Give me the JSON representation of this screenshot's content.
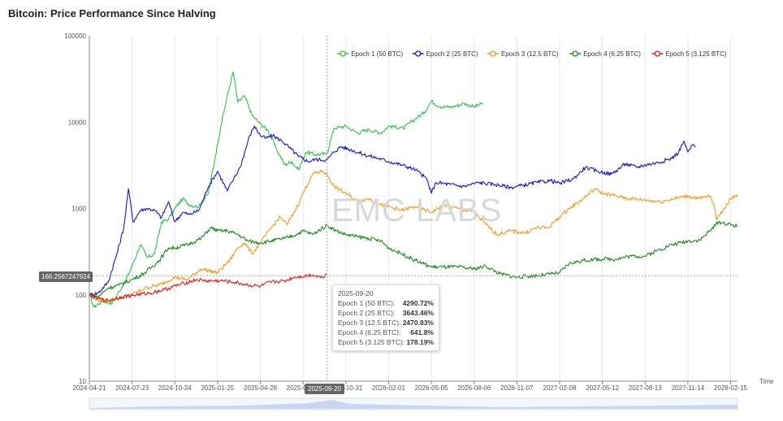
{
  "title": "Bitcoin: Price Performance Since Halving",
  "watermark": "EMC LABS",
  "chart_data": {
    "type": "line",
    "yscale": "log",
    "ylim": [
      10,
      100000
    ],
    "y_ticks": [
      "10",
      "100",
      "1000",
      "10000",
      "100000"
    ],
    "x_ticks": [
      "2024-04-21",
      "2024-07-23",
      "2024-10-24",
      "2025-01-25",
      "2025-04-28",
      "2025-07-30",
      "2025-10-31",
      "2026-02-01",
      "2026-05-05",
      "2026-08-06",
      "2026-11-07",
      "2027-02-08",
      "2027-05-12",
      "2027-08-13",
      "2027-11-14",
      "2028-02-15"
    ],
    "x_range": [
      "2024-04-21",
      "2028-03-01"
    ],
    "xlabel": "Time",
    "legend_position": "top-right",
    "grid": "vertical",
    "series": [
      {
        "name": "Epoch 1 (50 BTC)",
        "color": "#2ec24a",
        "points": [
          [
            "2024-04-21",
            100
          ],
          [
            "2024-05-01",
            72
          ],
          [
            "2024-05-20",
            85
          ],
          [
            "2024-06-10",
            80
          ],
          [
            "2024-06-25",
            110
          ],
          [
            "2024-07-10",
            150
          ],
          [
            "2024-07-25",
            230
          ],
          [
            "2024-08-10",
            380
          ],
          [
            "2024-08-25",
            270
          ],
          [
            "2024-09-10",
            300
          ],
          [
            "2024-09-25",
            700
          ],
          [
            "2024-10-10",
            750
          ],
          [
            "2024-10-24",
            1000
          ],
          [
            "2024-11-10",
            1300
          ],
          [
            "2024-11-25",
            1100
          ],
          [
            "2024-12-15",
            1050
          ],
          [
            "2025-01-05",
            1500
          ],
          [
            "2025-01-20",
            4000
          ],
          [
            "2025-02-01",
            9000
          ],
          [
            "2025-02-15",
            20000
          ],
          [
            "2025-02-28",
            38000
          ],
          [
            "2025-03-10",
            17000
          ],
          [
            "2025-03-25",
            20000
          ],
          [
            "2025-04-10",
            12000
          ],
          [
            "2025-04-28",
            9500
          ],
          [
            "2025-05-15",
            8000
          ],
          [
            "2025-06-01",
            5000
          ],
          [
            "2025-06-20",
            3200
          ],
          [
            "2025-07-05",
            3500
          ],
          [
            "2025-07-20",
            2800
          ],
          [
            "2025-08-05",
            4500
          ],
          [
            "2025-08-25",
            4200
          ],
          [
            "2025-09-20",
            4290
          ],
          [
            "2025-10-05",
            8500
          ],
          [
            "2025-10-31",
            9000
          ],
          [
            "2025-11-25",
            7500
          ],
          [
            "2025-12-20",
            8200
          ],
          [
            "2026-01-15",
            7500
          ],
          [
            "2026-02-01",
            9000
          ],
          [
            "2026-03-05",
            8500
          ],
          [
            "2026-04-01",
            11000
          ],
          [
            "2026-04-20",
            13000
          ],
          [
            "2026-05-05",
            17500
          ],
          [
            "2026-05-25",
            15000
          ],
          [
            "2026-06-20",
            15000
          ],
          [
            "2026-07-15",
            16500
          ],
          [
            "2026-08-06",
            15000
          ],
          [
            "2026-08-25",
            16500
          ]
        ]
      },
      {
        "name": "Epoch 2 (25 BTC)",
        "color": "#1616d4",
        "points": [
          [
            "2024-04-21",
            100
          ],
          [
            "2024-05-10",
            105
          ],
          [
            "2024-06-01",
            140
          ],
          [
            "2024-06-20",
            300
          ],
          [
            "2024-07-05",
            600
          ],
          [
            "2024-07-15",
            1700
          ],
          [
            "2024-07-25",
            700
          ],
          [
            "2024-08-10",
            950
          ],
          [
            "2024-08-25",
            1000
          ],
          [
            "2024-09-10",
            950
          ],
          [
            "2024-09-25",
            780
          ],
          [
            "2024-10-10",
            1200
          ],
          [
            "2024-10-24",
            700
          ],
          [
            "2024-11-10",
            900
          ],
          [
            "2024-11-25",
            850
          ],
          [
            "2024-12-15",
            950
          ],
          [
            "2025-01-05",
            1800
          ],
          [
            "2025-01-25",
            2700
          ],
          [
            "2025-02-15",
            1600
          ],
          [
            "2025-03-01",
            2200
          ],
          [
            "2025-03-15",
            3000
          ],
          [
            "2025-04-05",
            7000
          ],
          [
            "2025-04-15",
            9000
          ],
          [
            "2025-04-28",
            7000
          ],
          [
            "2025-05-10",
            6500
          ],
          [
            "2025-05-25",
            7000
          ],
          [
            "2025-06-15",
            6000
          ],
          [
            "2025-07-01",
            5000
          ],
          [
            "2025-07-20",
            4000
          ],
          [
            "2025-08-10",
            3500
          ],
          [
            "2025-08-25",
            3700
          ],
          [
            "2025-09-20",
            3643
          ],
          [
            "2025-10-05",
            4500
          ],
          [
            "2025-10-20",
            5200
          ],
          [
            "2025-11-10",
            4800
          ],
          [
            "2025-12-10",
            4200
          ],
          [
            "2026-01-10",
            3800
          ],
          [
            "2026-02-01",
            3500
          ],
          [
            "2026-03-01",
            3200
          ],
          [
            "2026-04-01",
            2800
          ],
          [
            "2026-04-25",
            2200
          ],
          [
            "2026-05-05",
            1500
          ],
          [
            "2026-05-15",
            2000
          ],
          [
            "2026-06-15",
            1900
          ],
          [
            "2026-07-15",
            1800
          ],
          [
            "2026-08-15",
            2000
          ],
          [
            "2026-09-20",
            1900
          ],
          [
            "2026-10-25",
            1750
          ],
          [
            "2026-11-20",
            1850
          ],
          [
            "2026-12-20",
            2000
          ],
          [
            "2027-01-20",
            2100
          ],
          [
            "2027-02-08",
            1950
          ],
          [
            "2027-03-10",
            2200
          ],
          [
            "2027-04-05",
            3000
          ],
          [
            "2027-05-01",
            2700
          ],
          [
            "2027-06-01",
            2500
          ],
          [
            "2027-07-01",
            3300
          ],
          [
            "2027-07-25",
            3000
          ],
          [
            "2027-08-13",
            3200
          ],
          [
            "2027-09-10",
            3400
          ],
          [
            "2027-10-10",
            3800
          ],
          [
            "2027-10-25",
            4500
          ],
          [
            "2027-11-05",
            6000
          ],
          [
            "2027-11-14",
            4500
          ],
          [
            "2027-11-25",
            5500
          ],
          [
            "2027-12-01",
            5200
          ]
        ]
      },
      {
        "name": "Epoch 3 (12.5 BTC)",
        "color": "#f29a1e",
        "points": [
          [
            "2024-04-21",
            100
          ],
          [
            "2024-05-15",
            85
          ],
          [
            "2024-06-15",
            90
          ],
          [
            "2024-07-23",
            100
          ],
          [
            "2024-08-20",
            120
          ],
          [
            "2024-09-20",
            130
          ],
          [
            "2024-10-24",
            160
          ],
          [
            "2024-11-20",
            150
          ],
          [
            "2024-12-20",
            200
          ],
          [
            "2025-01-25",
            180
          ],
          [
            "2025-02-20",
            250
          ],
          [
            "2025-03-10",
            350
          ],
          [
            "2025-03-25",
            400
          ],
          [
            "2025-04-10",
            300
          ],
          [
            "2025-04-28",
            400
          ],
          [
            "2025-05-20",
            580
          ],
          [
            "2025-06-10",
            800
          ],
          [
            "2025-06-25",
            650
          ],
          [
            "2025-07-15",
            1000
          ],
          [
            "2025-07-30",
            1500
          ],
          [
            "2025-08-20",
            2500
          ],
          [
            "2025-09-10",
            2700
          ],
          [
            "2025-09-20",
            2470
          ],
          [
            "2025-10-05",
            1800
          ],
          [
            "2025-10-31",
            1500
          ],
          [
            "2025-11-25",
            1200
          ],
          [
            "2025-12-20",
            1300
          ],
          [
            "2026-01-15",
            1100
          ],
          [
            "2026-02-01",
            1050
          ],
          [
            "2026-03-01",
            950
          ],
          [
            "2026-04-01",
            1050
          ],
          [
            "2026-05-05",
            900
          ],
          [
            "2026-06-01",
            1100
          ],
          [
            "2026-07-01",
            1000
          ],
          [
            "2026-08-06",
            900
          ],
          [
            "2026-09-01",
            650
          ],
          [
            "2026-09-25",
            500
          ],
          [
            "2026-10-25",
            550
          ],
          [
            "2026-11-25",
            520
          ],
          [
            "2026-12-20",
            600
          ],
          [
            "2027-01-15",
            600
          ],
          [
            "2027-02-08",
            800
          ],
          [
            "2027-03-01",
            1000
          ],
          [
            "2027-04-01",
            1300
          ],
          [
            "2027-04-25",
            1700
          ],
          [
            "2027-05-12",
            1500
          ],
          [
            "2027-06-10",
            1400
          ],
          [
            "2027-07-10",
            1300
          ],
          [
            "2027-08-13",
            1250
          ],
          [
            "2027-09-15",
            1200
          ],
          [
            "2027-10-15",
            1300
          ],
          [
            "2027-11-14",
            1400
          ],
          [
            "2027-12-10",
            1300
          ],
          [
            "2028-01-01",
            1400
          ],
          [
            "2028-01-10",
            1100
          ],
          [
            "2028-01-15",
            750
          ],
          [
            "2028-02-01",
            1000
          ],
          [
            "2028-02-15",
            1300
          ],
          [
            "2028-03-01",
            1450
          ]
        ]
      },
      {
        "name": "Epoch 4 (6.25 BTC)",
        "color": "#1a8a1a",
        "points": [
          [
            "2024-04-21",
            100
          ],
          [
            "2024-05-10",
            95
          ],
          [
            "2024-06-01",
            120
          ],
          [
            "2024-06-25",
            130
          ],
          [
            "2024-07-23",
            150
          ],
          [
            "2024-08-20",
            180
          ],
          [
            "2024-09-20",
            250
          ],
          [
            "2024-10-10",
            350
          ],
          [
            "2024-10-24",
            350
          ],
          [
            "2024-11-20",
            380
          ],
          [
            "2024-12-20",
            450
          ],
          [
            "2025-01-10",
            600
          ],
          [
            "2025-01-25",
            550
          ],
          [
            "2025-02-15",
            550
          ],
          [
            "2025-03-10",
            500
          ],
          [
            "2025-04-01",
            420
          ],
          [
            "2025-04-28",
            400
          ],
          [
            "2025-05-20",
            420
          ],
          [
            "2025-06-20",
            450
          ],
          [
            "2025-07-15",
            500
          ],
          [
            "2025-07-30",
            550
          ],
          [
            "2025-08-20",
            500
          ],
          [
            "2025-09-20",
            641
          ],
          [
            "2025-10-10",
            550
          ],
          [
            "2025-10-31",
            500
          ],
          [
            "2025-11-25",
            470
          ],
          [
            "2025-12-20",
            450
          ],
          [
            "2026-01-15",
            420
          ],
          [
            "2026-02-01",
            350
          ],
          [
            "2026-03-01",
            300
          ],
          [
            "2026-04-01",
            250
          ],
          [
            "2026-05-05",
            210
          ],
          [
            "2026-06-01",
            210
          ],
          [
            "2026-07-01",
            210
          ],
          [
            "2026-08-06",
            200
          ],
          [
            "2026-09-01",
            215
          ],
          [
            "2026-10-01",
            175
          ],
          [
            "2026-11-07",
            160
          ],
          [
            "2026-12-05",
            165
          ],
          [
            "2027-01-05",
            170
          ],
          [
            "2027-02-08",
            180
          ],
          [
            "2027-03-01",
            230
          ],
          [
            "2027-04-01",
            250
          ],
          [
            "2027-05-12",
            260
          ],
          [
            "2027-06-10",
            260
          ],
          [
            "2027-07-10",
            280
          ],
          [
            "2027-08-13",
            280
          ],
          [
            "2027-09-10",
            330
          ],
          [
            "2027-10-10",
            380
          ],
          [
            "2027-11-14",
            420
          ],
          [
            "2027-12-10",
            430
          ],
          [
            "2028-01-01",
            550
          ],
          [
            "2028-01-20",
            700
          ],
          [
            "2028-02-15",
            650
          ],
          [
            "2028-03-01",
            620
          ]
        ]
      },
      {
        "name": "Epoch 5 (3.125 BTC)",
        "color": "#e31a1a",
        "points": [
          [
            "2024-04-21",
            100
          ],
          [
            "2024-05-10",
            90
          ],
          [
            "2024-06-01",
            85
          ],
          [
            "2024-07-01",
            95
          ],
          [
            "2024-08-01",
            100
          ],
          [
            "2024-09-01",
            105
          ],
          [
            "2024-10-01",
            115
          ],
          [
            "2024-11-01",
            130
          ],
          [
            "2024-12-10",
            150
          ],
          [
            "2025-01-01",
            145
          ],
          [
            "2025-02-01",
            145
          ],
          [
            "2025-03-01",
            140
          ],
          [
            "2025-04-01",
            130
          ],
          [
            "2025-04-28",
            125
          ],
          [
            "2025-05-20",
            140
          ],
          [
            "2025-06-20",
            145
          ],
          [
            "2025-07-10",
            160
          ],
          [
            "2025-08-01",
            165
          ],
          [
            "2025-08-20",
            170
          ],
          [
            "2025-09-10",
            160
          ],
          [
            "2025-09-20",
            178
          ]
        ]
      }
    ]
  },
  "tooltip": {
    "date": "2025-09-20",
    "rows": [
      {
        "label": "Epoch 1 (50 BTC):",
        "value": "4290.72%"
      },
      {
        "label": "Epoch 2 (25 BTC):",
        "value": "3643.46%"
      },
      {
        "label": "Epoch 3 (12.5 BTC):",
        "value": "2470.83%"
      },
      {
        "label": "Epoch 4 (6.25 BTC):",
        "value": "641.8%"
      },
      {
        "label": "Epoch 5 (3.125 BTC):",
        "value": "178.19%"
      }
    ]
  },
  "crosshair": {
    "y_value_label": "166.2567247924",
    "y_value": 166.2567247924,
    "x_date_label": "2025-09-20"
  }
}
